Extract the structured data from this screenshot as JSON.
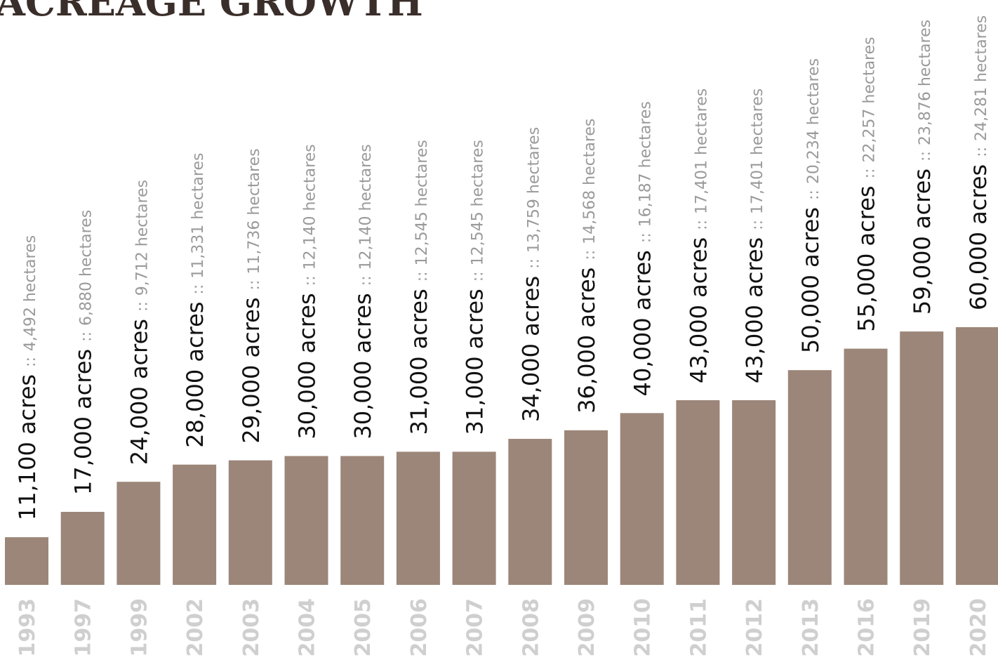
{
  "chart_data": {
    "type": "bar",
    "title": "ACREAGE GROWTH",
    "categories": [
      "1993",
      "1997",
      "1999",
      "2002",
      "2003",
      "2004",
      "2005",
      "2006",
      "2007",
      "2008",
      "2009",
      "2010",
      "2011",
      "2012",
      "2013",
      "2016",
      "2019",
      "2020"
    ],
    "values": [
      11100,
      17000,
      24000,
      28000,
      29000,
      30000,
      30000,
      31000,
      31000,
      34000,
      36000,
      40000,
      43000,
      43000,
      50000,
      55000,
      59000,
      60000
    ],
    "value_labels": [
      "11,100 acres",
      "17,000 acres",
      "24,000 acres",
      "28,000 acres",
      "29,000 acres",
      "30,000 acres",
      "30,000 acres",
      "31,000 acres",
      "31,000 acres",
      "34,000 acres",
      "36,000 acres",
      "40,000 acres",
      "43,000 acres",
      "43,000 acres",
      "50,000 acres",
      "55,000 acres",
      "59,000 acres",
      "60,000 acres"
    ],
    "separator": "::",
    "secondary_labels": [
      "4,492 hectares",
      "6,880 hectares",
      "9,712 hectares",
      "11,331 hectares",
      "11,736 hectares",
      "12,140 hectares",
      "12,140 hectares",
      "12,545 hectares",
      "12,545 hectares",
      "13,759 hectares",
      "14,568 hectares",
      "16,187 hectares",
      "17,401 hectares",
      "17,401 hectares",
      "20,234 hectares",
      "22,257 hectares",
      "23,876 hectares",
      "24,281 hectares"
    ],
    "color": "#9c8679"
  }
}
